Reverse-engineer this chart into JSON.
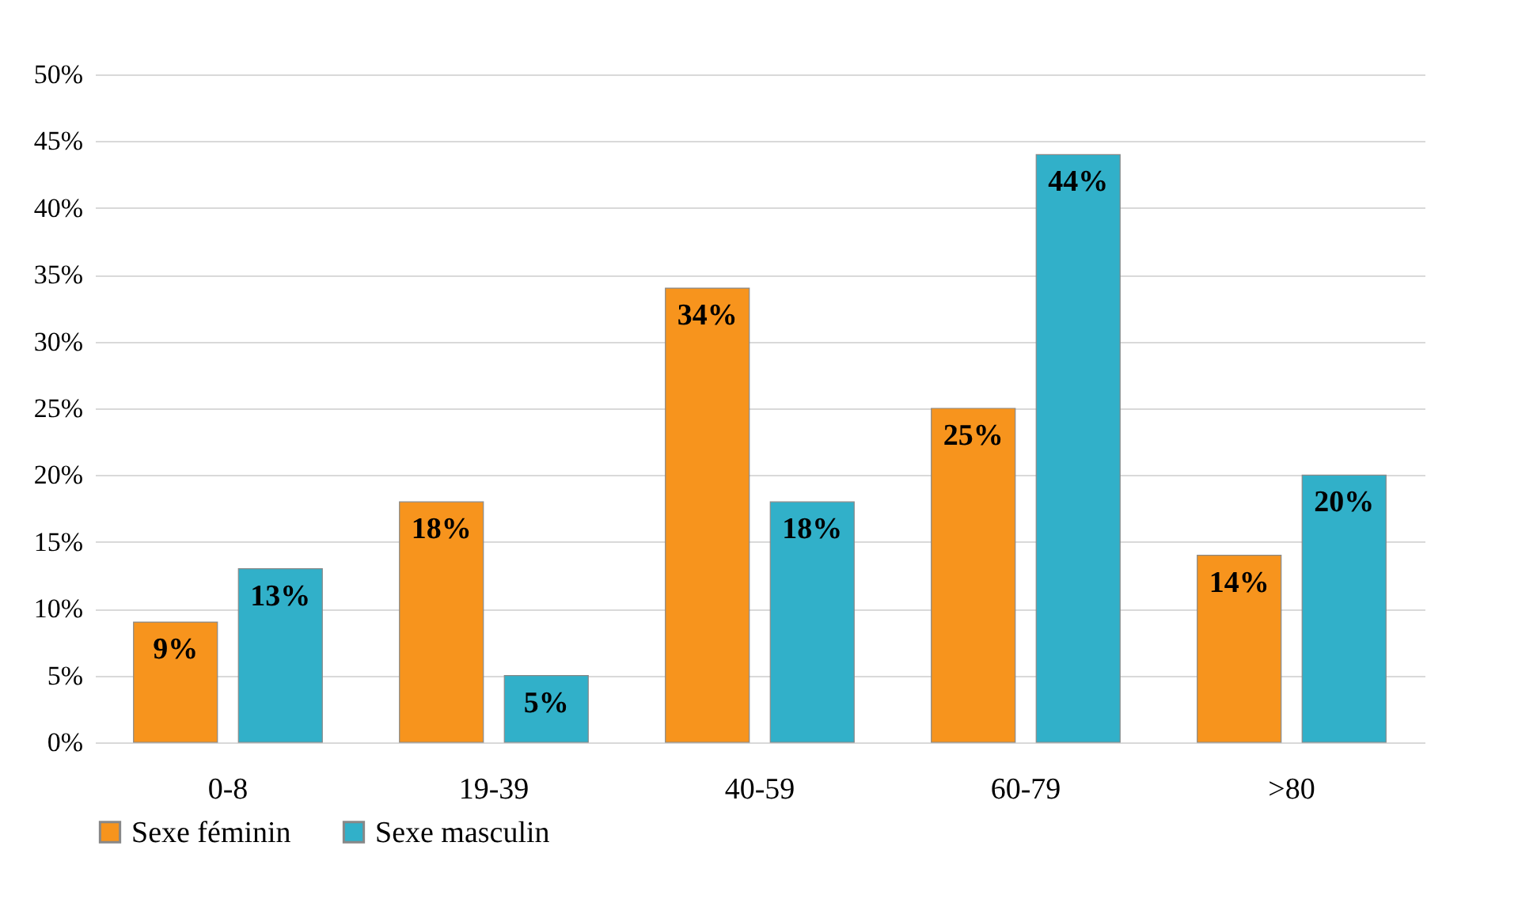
{
  "chart_data": {
    "type": "bar",
    "categories": [
      "0-8",
      "19-39",
      "40-59",
      "60-79",
      ">80"
    ],
    "series": [
      {
        "name": "Sexe féminin",
        "color": "#f7941d",
        "values": [
          9,
          18,
          34,
          25,
          14
        ],
        "value_labels": [
          "9%",
          "18%",
          "34%",
          "25%",
          "14%"
        ]
      },
      {
        "name": "Sexe masculin",
        "color": "#31b0c9",
        "values": [
          13,
          5,
          18,
          44,
          20
        ],
        "value_labels": [
          "13%",
          "5%",
          "18%",
          "44%",
          "20%"
        ]
      }
    ],
    "ylim": [
      0,
      50
    ],
    "yticks": [
      {
        "value": 0,
        "label": "0%"
      },
      {
        "value": 5,
        "label": "5%"
      },
      {
        "value": 10,
        "label": "10%"
      },
      {
        "value": 15,
        "label": "15%"
      },
      {
        "value": 20,
        "label": "20%"
      },
      {
        "value": 25,
        "label": "25%"
      },
      {
        "value": 30,
        "label": "30%"
      },
      {
        "value": 35,
        "label": "35%"
      },
      {
        "value": 40,
        "label": "40%"
      },
      {
        "value": 45,
        "label": "45%"
      },
      {
        "value": 50,
        "label": "50%"
      }
    ],
    "grid": "y",
    "legend": "bottom"
  }
}
